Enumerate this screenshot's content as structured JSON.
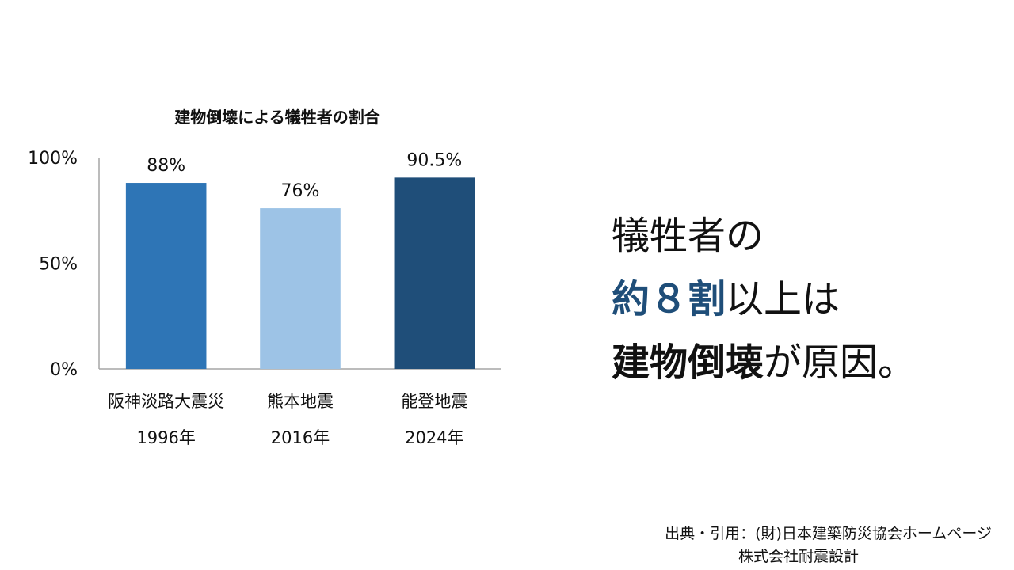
{
  "chart_data": {
    "type": "bar",
    "title": "建物倒壊による犠牲者の割合",
    "categories": [
      "阪神淡路大震災",
      "熊本地震",
      "能登地震"
    ],
    "years": [
      "1996年",
      "2016年",
      "2024年"
    ],
    "values": [
      88,
      76,
      90.5
    ],
    "value_labels": [
      "88%",
      "76%",
      "90.5%"
    ],
    "colors": [
      "#2e75b6",
      "#9dc3e6",
      "#1f4e79"
    ],
    "ylim": [
      0,
      100
    ],
    "yticks": [
      0,
      50,
      100
    ],
    "ytick_labels": [
      "0%",
      "50%",
      "100%"
    ],
    "grid": false,
    "xlabel": "",
    "ylabel": ""
  },
  "headline": {
    "line1": "犠牲者の",
    "line2_accent": "約８割",
    "line2_rest": "以上は",
    "line3_strong": "建物倒壊",
    "line3_rest": "が原因。"
  },
  "source": {
    "line1": "出典・引用：(財)日本建築防災協会ホームページ",
    "line2": "株式会社耐震設計"
  }
}
